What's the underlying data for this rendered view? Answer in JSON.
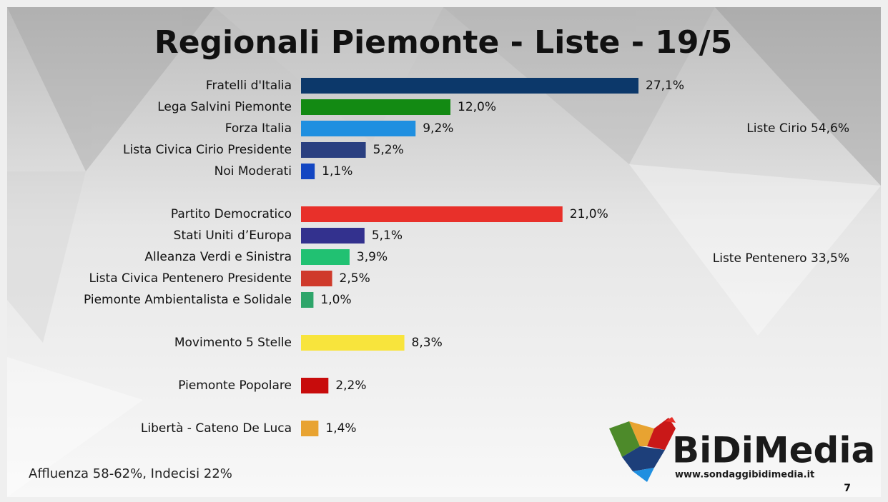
{
  "chart_data": {
    "type": "bar",
    "orientation": "horizontal",
    "title": "Regionali Piemonte - Liste - 19/5",
    "categories": [
      "Fratelli d'Italia",
      "Lega Salvini Piemonte",
      "Forza Italia",
      "Lista Civica Cirio Presidente",
      "Noi Moderati",
      null,
      "Partito Democratico",
      "Stati Uniti d’Europa",
      "Alleanza Verdi e Sinistra",
      "Lista Civica Pentenero Presidente",
      "Piemonte Ambientalista e Solidale",
      null,
      "Movimento 5 Stelle",
      null,
      "Piemonte Popolare",
      null,
      "Libertà - Cateno De Luca"
    ],
    "values": [
      27.1,
      12.0,
      9.2,
      5.2,
      1.1,
      null,
      21.0,
      5.1,
      3.9,
      2.5,
      1.0,
      null,
      8.3,
      null,
      2.2,
      null,
      1.4
    ],
    "value_labels": [
      "27,1%",
      "12,0%",
      "9,2%",
      "5,2%",
      "1,1%",
      null,
      "21,0%",
      "5,1%",
      "3,9%",
      "2,5%",
      "1,0%",
      null,
      "8,3%",
      null,
      "2,2%",
      null,
      "1,4%"
    ],
    "colors": [
      "#0c386a",
      "#138a13",
      "#1f8fe0",
      "#2a3f80",
      "#1346c2",
      null,
      "#e8302a",
      "#33318e",
      "#21c172",
      "#cf3a2b",
      "#2ea56a",
      null,
      "#f8e43c",
      null,
      "#c80c0c",
      null,
      "#e8a331"
    ],
    "annotations": [
      "Liste Cirio 54,6%",
      "Liste Pentenero 33,5%"
    ],
    "footnote": "Affluenza 58-62%, Indecisi 22%",
    "brand": "BiDiMedia",
    "brand_url": "www.sondaggibidimedia.it",
    "page_number": "7"
  }
}
